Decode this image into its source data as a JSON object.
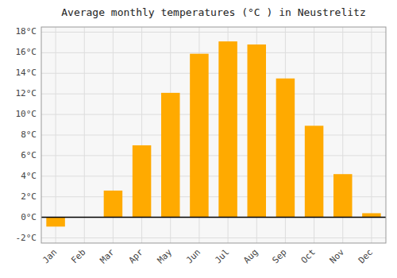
{
  "chart_data": {
    "type": "bar",
    "title": "Average monthly temperatures (°C ) in Neustrelitz",
    "categories": [
      "Jan",
      "Feb",
      "Mar",
      "Apr",
      "May",
      "Jun",
      "Jul",
      "Aug",
      "Sep",
      "Oct",
      "Nov",
      "Dec"
    ],
    "values": [
      -0.9,
      0.0,
      2.6,
      7.0,
      12.1,
      15.9,
      17.1,
      16.8,
      13.5,
      8.9,
      4.2,
      0.4
    ],
    "color": "#FFAA00",
    "ylim": [
      -2.5,
      18.5
    ],
    "yticks": [
      {
        "value": -2,
        "label": "-2°C"
      },
      {
        "value": 0,
        "label": "0°C"
      },
      {
        "value": 2,
        "label": "2°C"
      },
      {
        "value": 4,
        "label": "4°C"
      },
      {
        "value": 6,
        "label": "6°C"
      },
      {
        "value": 8,
        "label": "8°C"
      },
      {
        "value": 10,
        "label": "10°C"
      },
      {
        "value": 12,
        "label": "12°C"
      },
      {
        "value": 14,
        "label": "14°C"
      },
      {
        "value": 16,
        "label": "16°C"
      },
      {
        "value": 18,
        "label": "18°C"
      }
    ],
    "grid": true
  }
}
